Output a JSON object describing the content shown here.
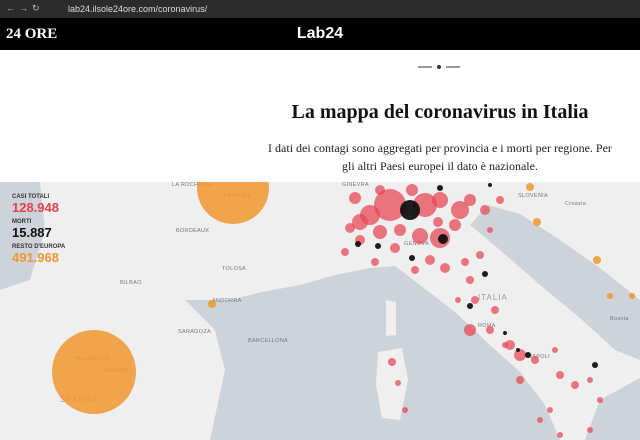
{
  "browser": {
    "url": "lab24.ilsole24ore.com/coronavirus/"
  },
  "header": {
    "logo_left": "24 ORE",
    "logo_center": "Lab24"
  },
  "article": {
    "title": "La mappa del coronavirus in Italia",
    "description": "I dati dei contagi sono aggregati per provincia e i morti per regione. Per gli altri Paesi europei il dato è nazionale."
  },
  "stats": [
    {
      "label": "CASI TOTALI",
      "value": "128.948",
      "color": "#e8404f"
    },
    {
      "label": "MORTI",
      "value": "15.887",
      "color": "#111111"
    },
    {
      "label": "RESTO D'EUROPA",
      "value": "491.968",
      "color": "#f0962e"
    }
  ],
  "map": {
    "places": [
      "LA ROCHELLE",
      "LIMOGES",
      "BORDEAUX",
      "TOLOSA",
      "BILBAO",
      "ANDORRA",
      "SARAGOZA",
      "BARCELLONA",
      "VALLADOLID",
      "MADRID",
      "SPAGNA",
      "GINEVRA",
      "GENOVA",
      "ITALIA",
      "ROMA",
      "NAPOLI",
      "SLOVENIA",
      "Croazia",
      "Bosnia"
    ]
  }
}
